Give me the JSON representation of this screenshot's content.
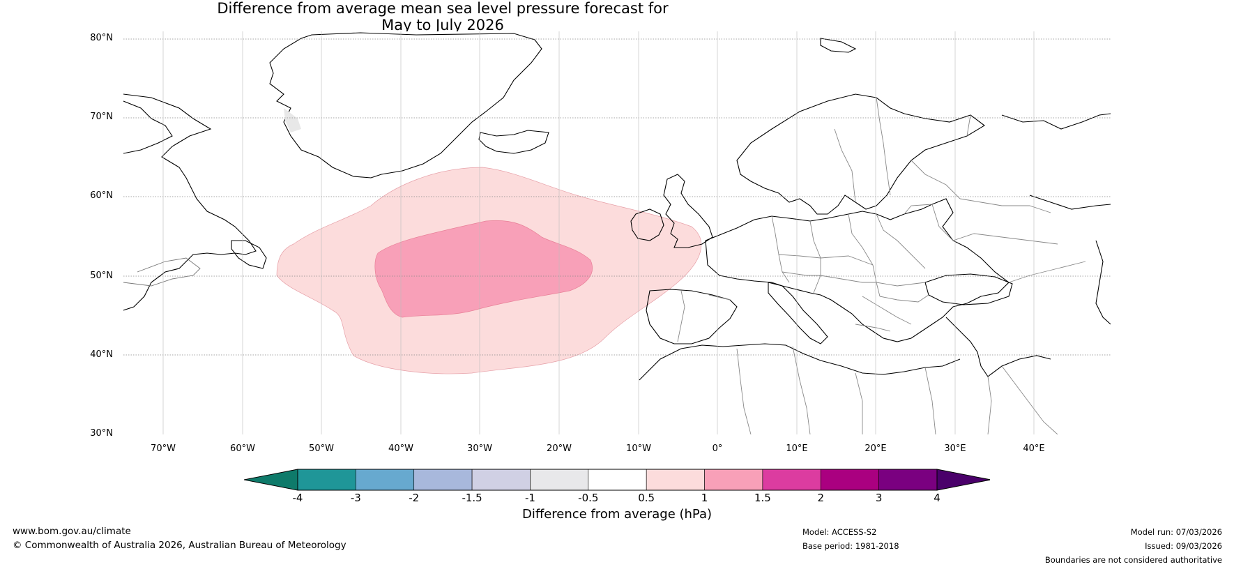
{
  "title": {
    "line1": "Difference from average mean sea level pressure forecast for",
    "line2": "May to July 2026"
  },
  "map": {
    "lat_labels": [
      "80°N",
      "70°N",
      "60°N",
      "50°N",
      "40°N",
      "30°N"
    ],
    "lon_labels": [
      "70°W",
      "60°W",
      "50°W",
      "40°W",
      "30°W",
      "20°W",
      "10°W",
      "0°",
      "10°E",
      "20°E",
      "30°E",
      "40°E"
    ],
    "anomaly_regions": [
      {
        "name": "0.5 to 1 hPa",
        "color": "#fcdcdc"
      },
      {
        "name": "1 to 1.5 hPa",
        "color": "#f8a0b8"
      }
    ]
  },
  "colorbar": {
    "ticks": [
      "-4",
      "-3",
      "-2",
      "-1.5",
      "-1",
      "-0.5",
      "0.5",
      "1",
      "1.5",
      "2",
      "3",
      "4"
    ],
    "colors": [
      "#0e7a6a",
      "#1f9698",
      "#67a9cf",
      "#a8b8dc",
      "#d0d0e4",
      "#e8e8ea",
      "#ffffff",
      "#fcdcdc",
      "#f8a0b8",
      "#dc3ca0",
      "#aa0080",
      "#7a0080",
      "#4a006a"
    ],
    "label": "Difference from average (hPa)"
  },
  "footer": {
    "website": "www.bom.gov.au/climate",
    "copyright": "© Commonwealth of Australia 2026, Australian Bureau of Meteorology",
    "model": "Model: ACCESS-S2",
    "base_period": "Base period: 1981-2018",
    "model_run": "Model run: 07/03/2026",
    "issued": "Issued: 09/03/2026",
    "disclaimer": "Boundaries are not considered authoritative"
  }
}
